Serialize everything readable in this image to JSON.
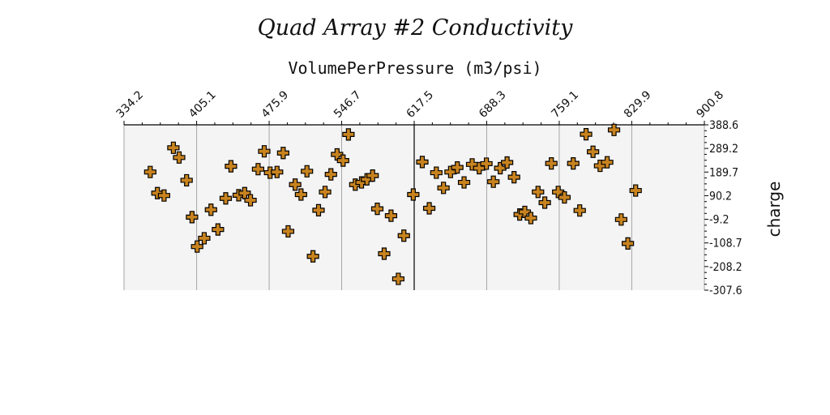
{
  "chart_data": {
    "type": "scatter",
    "title": "Quad Array #2 Conductivity",
    "xlabel": "VolumePerPressure (m3/psi)",
    "ylabel": "charge",
    "x_ticks": [
      "334.2",
      "405.1",
      "475.9",
      "546.7",
      "617.5",
      "688.3",
      "759.1",
      "829.9",
      "900.8"
    ],
    "y_ticks": [
      "388.6",
      "289.2",
      "189.7",
      "90.2",
      "-9.2",
      "-108.7",
      "-208.2",
      "-307.6"
    ],
    "xlim": [
      334.2,
      900.8
    ],
    "ylim": [
      -307.6,
      388.6
    ],
    "x_axis_position": "top",
    "y_axis_position": "right",
    "grid": "vertical",
    "vertical_reference_line_x": 617.5,
    "marker": "plus",
    "colors": {
      "marker_fill": "#c8831f",
      "marker_edge": "#000000",
      "plot_bg": "#f4f4f4",
      "grid": "#a6a6a6"
    },
    "points": [
      {
        "x": 359.8,
        "y": 190
      },
      {
        "x": 366.8,
        "y": 101
      },
      {
        "x": 373.3,
        "y": 91
      },
      {
        "x": 382.4,
        "y": 292
      },
      {
        "x": 388.0,
        "y": 251
      },
      {
        "x": 395.3,
        "y": 155
      },
      {
        "x": 400.6,
        "y": 0
      },
      {
        "x": 405.6,
        "y": -124
      },
      {
        "x": 412.5,
        "y": -89
      },
      {
        "x": 419.1,
        "y": 31
      },
      {
        "x": 425.9,
        "y": -52
      },
      {
        "x": 433.5,
        "y": 79
      },
      {
        "x": 438.6,
        "y": 214
      },
      {
        "x": 446.2,
        "y": 92
      },
      {
        "x": 452.0,
        "y": 101
      },
      {
        "x": 457.7,
        "y": 71
      },
      {
        "x": 465.1,
        "y": 202
      },
      {
        "x": 471.1,
        "y": 277
      },
      {
        "x": 476.8,
        "y": 187
      },
      {
        "x": 483.6,
        "y": 190
      },
      {
        "x": 489.6,
        "y": 270
      },
      {
        "x": 494.4,
        "y": -60
      },
      {
        "x": 501.3,
        "y": 137
      },
      {
        "x": 507.0,
        "y": 95
      },
      {
        "x": 512.8,
        "y": 193
      },
      {
        "x": 518.7,
        "y": -165
      },
      {
        "x": 524.1,
        "y": 29
      },
      {
        "x": 530.5,
        "y": 106
      },
      {
        "x": 536.2,
        "y": 180
      },
      {
        "x": 542.2,
        "y": 264
      },
      {
        "x": 548.1,
        "y": 238
      },
      {
        "x": 553.3,
        "y": 348
      },
      {
        "x": 560.0,
        "y": 137
      },
      {
        "x": 566.1,
        "y": 146
      },
      {
        "x": 571.4,
        "y": 159
      },
      {
        "x": 576.9,
        "y": 175
      },
      {
        "x": 581.5,
        "y": 35
      },
      {
        "x": 588.2,
        "y": -154
      },
      {
        "x": 594.9,
        "y": 6
      },
      {
        "x": 602.0,
        "y": -260
      },
      {
        "x": 607.4,
        "y": -78
      },
      {
        "x": 616.6,
        "y": 95
      },
      {
        "x": 625.4,
        "y": 232
      },
      {
        "x": 632.2,
        "y": 37
      },
      {
        "x": 639.1,
        "y": 187
      },
      {
        "x": 646.1,
        "y": 123
      },
      {
        "x": 653.0,
        "y": 190
      },
      {
        "x": 659.6,
        "y": 209
      },
      {
        "x": 666.2,
        "y": 146
      },
      {
        "x": 674.1,
        "y": 222
      },
      {
        "x": 681.0,
        "y": 206
      },
      {
        "x": 688.0,
        "y": 225
      },
      {
        "x": 694.8,
        "y": 149
      },
      {
        "x": 701.5,
        "y": 206
      },
      {
        "x": 708.2,
        "y": 230
      },
      {
        "x": 715.0,
        "y": 168
      },
      {
        "x": 720.5,
        "y": 11
      },
      {
        "x": 725.5,
        "y": 22
      },
      {
        "x": 731.4,
        "y": -4
      },
      {
        "x": 738.4,
        "y": 106
      },
      {
        "x": 745.0,
        "y": 61
      },
      {
        "x": 751.4,
        "y": 226
      },
      {
        "x": 758.1,
        "y": 106
      },
      {
        "x": 764.2,
        "y": 83
      },
      {
        "x": 772.8,
        "y": 226
      },
      {
        "x": 779.1,
        "y": 28
      },
      {
        "x": 785.3,
        "y": 349
      },
      {
        "x": 792.1,
        "y": 275
      },
      {
        "x": 799.0,
        "y": 216
      },
      {
        "x": 805.9,
        "y": 231
      },
      {
        "x": 812.6,
        "y": 367
      },
      {
        "x": 819.6,
        "y": -10
      },
      {
        "x": 826.1,
        "y": -111
      },
      {
        "x": 833.7,
        "y": 112
      }
    ]
  }
}
